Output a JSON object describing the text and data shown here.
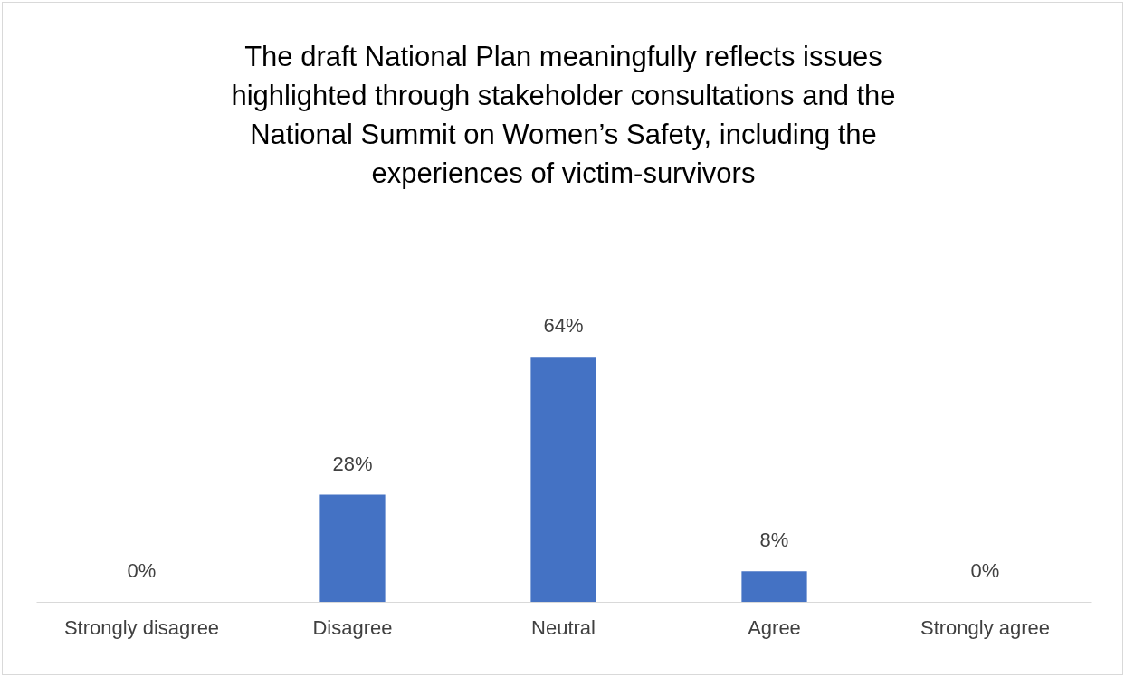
{
  "chart_data": {
    "type": "bar",
    "title": "The draft National Plan meaningfully reflects issues highlighted through stakeholder consultations and the National Summit on Women’s Safety, including the experiences of victim-survivors",
    "categories": [
      "Strongly disagree",
      "Disagree",
      "Neutral",
      "Agree",
      "Strongly agree"
    ],
    "values": [
      0,
      28,
      64,
      8,
      0
    ],
    "value_labels": [
      "0%",
      "28%",
      "64%",
      "8%",
      "0%"
    ],
    "color": "#4472c4"
  }
}
